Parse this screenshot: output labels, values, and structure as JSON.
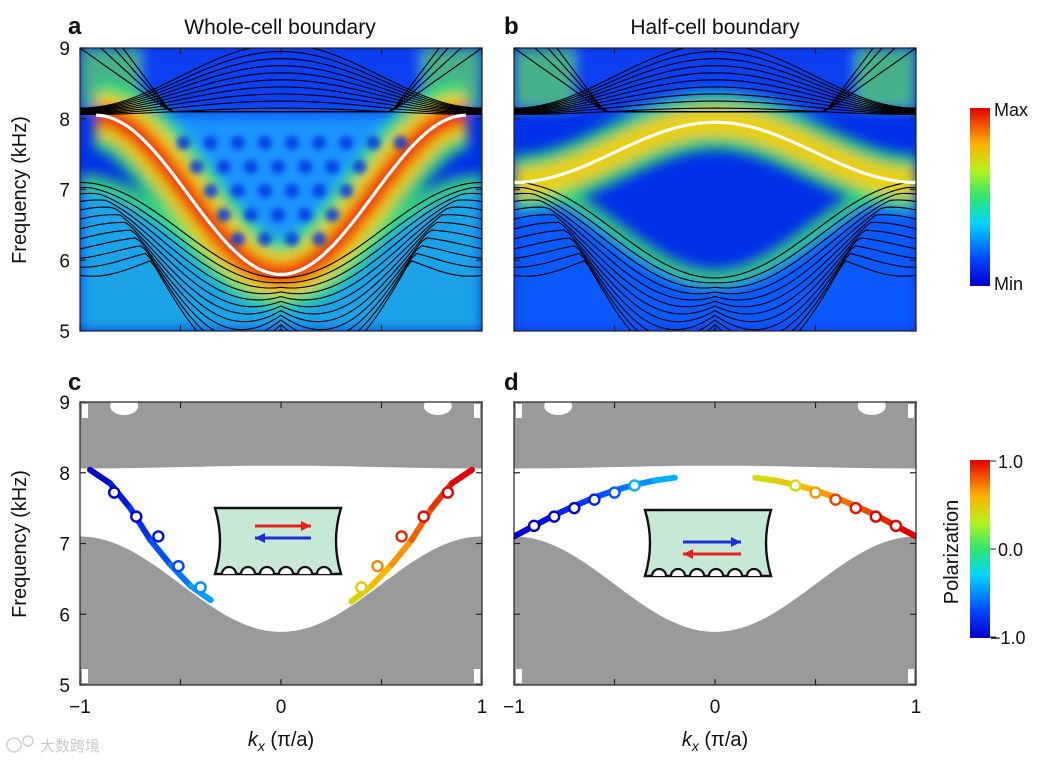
{
  "chart_data": [
    {
      "panel": "a",
      "type": "heatmap",
      "title": "Whole-cell boundary",
      "xlabel": "",
      "ylabel": "Frequency (kHz)",
      "xlim": [
        -1,
        1
      ],
      "ylim": [
        5,
        9
      ],
      "y_ticks": [
        "5",
        "6",
        "7",
        "8",
        "9"
      ],
      "edge_state": {
        "k_min": -0.92,
        "k_max": 0.92,
        "f_bottom": 5.8,
        "f_top": 8.05,
        "shape": "cosine_valley"
      },
      "bulk_bands": {
        "lower_top_center": 5.75,
        "lower_top_edge": 7.1,
        "upper_bottom": 8.1
      }
    },
    {
      "panel": "b",
      "type": "heatmap",
      "title": "Half-cell boundary",
      "xlabel": "",
      "ylabel": "",
      "xlim": [
        -1,
        1
      ],
      "ylim": [
        5,
        9
      ],
      "edge_state": {
        "k_min": -1.0,
        "k_max": 1.0,
        "f_center": 7.95,
        "f_edge": 7.1,
        "shape": "cosine_dome"
      },
      "bulk_bands": {
        "lower_top_center": 5.75,
        "lower_top_edge": 7.1,
        "upper_bottom": 8.1
      }
    },
    {
      "panel": "c",
      "type": "line",
      "xlabel_main": "k",
      "xlabel_sub": "x",
      "xlabel_unit": " (π/a)",
      "ylabel": "Frequency (kHz)",
      "xlim": [
        -1,
        1
      ],
      "ylim": [
        5,
        9
      ],
      "x_ticks": [
        "−1",
        "0",
        "1"
      ],
      "y_ticks": [
        "5",
        "6",
        "7",
        "8",
        "9"
      ],
      "series": [
        {
          "name": "left-branch",
          "polarization": -1.0,
          "x": [
            -0.95,
            -0.85,
            -0.75,
            -0.65,
            -0.55,
            -0.45,
            -0.35
          ],
          "y": [
            8.04,
            7.85,
            7.5,
            7.05,
            6.7,
            6.4,
            6.2
          ]
        },
        {
          "name": "right-branch",
          "polarization": 1.0,
          "x": [
            0.35,
            0.45,
            0.55,
            0.65,
            0.75,
            0.85,
            0.95
          ],
          "y": [
            6.18,
            6.4,
            6.7,
            7.05,
            7.5,
            7.85,
            8.04
          ]
        }
      ],
      "markers": {
        "x": [
          -0.83,
          -0.72,
          -0.61,
          -0.51,
          -0.4,
          0.4,
          0.48,
          0.6,
          0.71,
          0.83
        ],
        "y": [
          7.72,
          7.38,
          7.1,
          6.68,
          6.38,
          6.38,
          6.68,
          7.1,
          7.38,
          7.72
        ],
        "polarization": [
          -1.0,
          -0.98,
          -0.92,
          -0.7,
          -0.5,
          0.5,
          0.7,
          0.92,
          0.98,
          1.0
        ]
      },
      "inset": {
        "top_arrow_color": "#e8201c",
        "bottom_arrow_color": "#1a2fd8"
      }
    },
    {
      "panel": "d",
      "type": "line",
      "xlabel_main": "k",
      "xlabel_sub": "x",
      "xlabel_unit": " (π/a)",
      "ylabel": "",
      "xlim": [
        -1,
        1
      ],
      "ylim": [
        5,
        9
      ],
      "x_ticks": [
        "−1",
        "0",
        "1"
      ],
      "series": [
        {
          "name": "left-branch",
          "polarization": -1.0,
          "x": [
            -1.0,
            -0.9,
            -0.8,
            -0.7,
            -0.6,
            -0.5,
            -0.4,
            -0.3,
            -0.2
          ],
          "y": [
            7.1,
            7.25,
            7.4,
            7.53,
            7.65,
            7.75,
            7.83,
            7.89,
            7.93
          ]
        },
        {
          "name": "right-branch",
          "polarization": 1.0,
          "x": [
            0.2,
            0.3,
            0.4,
            0.5,
            0.6,
            0.7,
            0.8,
            0.9,
            1.0
          ],
          "y": [
            7.93,
            7.89,
            7.83,
            7.75,
            7.65,
            7.53,
            7.4,
            7.25,
            7.1
          ]
        }
      ],
      "markers": {
        "x": [
          -0.9,
          -0.8,
          -0.7,
          -0.6,
          -0.5,
          -0.4,
          0.4,
          0.5,
          0.6,
          0.7,
          0.8,
          0.9
        ],
        "y": [
          7.25,
          7.38,
          7.5,
          7.62,
          7.72,
          7.82,
          7.82,
          7.72,
          7.62,
          7.5,
          7.38,
          7.25
        ],
        "polarization": [
          -1.0,
          -1.0,
          -0.95,
          -0.85,
          -0.65,
          -0.4,
          0.4,
          0.65,
          0.85,
          0.95,
          1.0,
          1.0
        ]
      },
      "inset": {
        "top_arrow_color": "#1a2fd8",
        "bottom_arrow_color": "#e8201c"
      }
    }
  ],
  "colorbar_intensity": {
    "max_label": "Max",
    "min_label": "Min"
  },
  "colorbar_polarization": {
    "title": "Polarization",
    "ticks": [
      "1.0",
      "0.0",
      "−1.0"
    ],
    "values": [
      1.0,
      0.0,
      -1.0
    ]
  },
  "watermark": "大数跨境",
  "colors": {
    "bulk_gray": "#9a9a9a",
    "inset_fill": "#c8e8d6",
    "edge_line_white": "#ffffff"
  }
}
